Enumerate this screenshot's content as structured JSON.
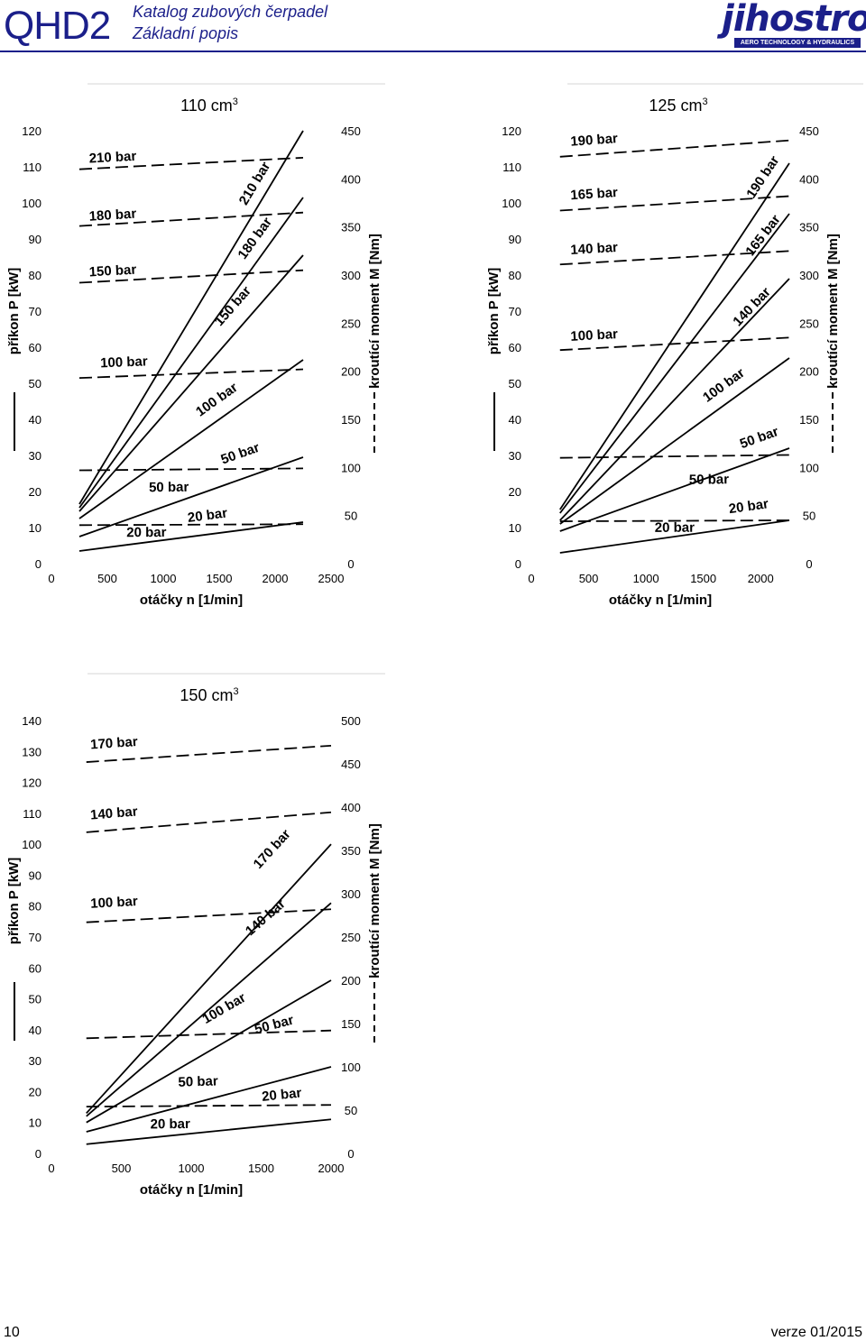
{
  "header": {
    "code": "QHD2",
    "subtitle_1": "Katalog zubových čerpadel",
    "subtitle_2": "Základní popis",
    "logo_text": "jihostroj",
    "logo_tagline": "AERO TECHNOLOGY & HYDRAULICS"
  },
  "footer": {
    "page_number": "10",
    "version": "verze 01/2015"
  },
  "colors": {
    "brand": "#1b1f8a",
    "lines": "#000000",
    "grid": "#e0e0e0"
  },
  "chart_data": [
    {
      "type": "line",
      "title_main": "110 cm",
      "title_sup": "3",
      "xlabel": "otáčky n [1/min]",
      "ylabel": "příkon P [kW]",
      "y2label": "kroutící moment M [Nm]",
      "xlim": [
        0,
        2500
      ],
      "ylim": [
        0,
        120
      ],
      "y2lim": [
        0,
        450
      ],
      "x_ticks": [
        "0",
        "500",
        "1000",
        "1500",
        "2000",
        "2500"
      ],
      "y_ticks": [
        "0",
        "10",
        "20",
        "30",
        "40",
        "50",
        "60",
        "70",
        "80",
        "90",
        "100",
        "110",
        "120"
      ],
      "y2_ticks": [
        "0",
        "50",
        "100",
        "150",
        "200",
        "250",
        "300",
        "350",
        "400",
        "450"
      ],
      "power_series": [
        {
          "name": "20 bar",
          "x": [
            250,
            2250
          ],
          "y": [
            3.5,
            11.5
          ],
          "lx": 1400,
          "ly": 12.2
        },
        {
          "name": "50 bar",
          "x": [
            250,
            2250
          ],
          "y": [
            7.5,
            29.5
          ],
          "lx": 1700,
          "ly": 29.4
        },
        {
          "name": "100 bar",
          "x": [
            250,
            2250
          ],
          "y": [
            12.5,
            56.5
          ],
          "lx": 1500,
          "ly": 44.5
        },
        {
          "name": "150 bar",
          "x": [
            250,
            2250
          ],
          "y": [
            14.5,
            85.5
          ],
          "lx": 1650,
          "ly": 70.6
        },
        {
          "name": "180 bar",
          "x": [
            250,
            2250
          ],
          "y": [
            15.5,
            101.5
          ],
          "lx": 1850,
          "ly": 89.5
        },
        {
          "name": "210 bar",
          "x": [
            250,
            2250
          ],
          "y": [
            16.5,
            120
          ],
          "lx": 1850,
          "ly": 104.8
        }
      ],
      "torque_series": [
        {
          "name": "20 bar",
          "x": [
            250,
            2250
          ],
          "y": [
            40,
            41
          ],
          "lx": 850,
          "ly": 28
        },
        {
          "name": "50 bar",
          "x": [
            250,
            2250
          ],
          "y": [
            97,
            99
          ],
          "lx": 1050,
          "ly": 75
        },
        {
          "name": "100 bar",
          "x": [
            250,
            2250
          ],
          "y": [
            193,
            202
          ],
          "lx": 650,
          "ly": 205
        },
        {
          "name": "150 bar",
          "x": [
            250,
            2250
          ],
          "y": [
            292,
            305
          ],
          "lx": 550,
          "ly": 300
        },
        {
          "name": "180 bar",
          "x": [
            250,
            2250
          ],
          "y": [
            351,
            365
          ],
          "lx": 550,
          "ly": 358
        },
        {
          "name": "210 bar",
          "x": [
            250,
            2250
          ],
          "y": [
            410,
            422
          ],
          "lx": 550,
          "ly": 418
        }
      ]
    },
    {
      "type": "line",
      "title_main": "125 cm",
      "title_sup": "3",
      "xlabel": "otáčky n [1/min]",
      "ylabel": "příkon P [kW]",
      "y2label": "kroutící moment M [Nm]",
      "xlim": [
        0,
        2250
      ],
      "ylim": [
        0,
        120
      ],
      "y2lim": [
        0,
        450
      ],
      "x_ticks": [
        "0",
        "500",
        "1000",
        "1500",
        "2000"
      ],
      "x_tick_values": [
        0,
        500,
        1000,
        1500,
        2000
      ],
      "y_ticks": [
        "0",
        "10",
        "20",
        "30",
        "40",
        "50",
        "60",
        "70",
        "80",
        "90",
        "100",
        "110",
        "120"
      ],
      "y2_ticks": [
        "0",
        "50",
        "100",
        "150",
        "200",
        "250",
        "300",
        "350",
        "400",
        "450"
      ],
      "power_series": [
        {
          "name": "20 bar",
          "x": [
            250,
            2250
          ],
          "y": [
            3,
            12
          ],
          "lx": 1900,
          "ly": 14.7
        },
        {
          "name": "50 bar",
          "x": [
            250,
            2250
          ],
          "y": [
            9,
            32
          ],
          "lx": 2000,
          "ly": 33.8
        },
        {
          "name": "100 bar",
          "x": [
            250,
            2250
          ],
          "y": [
            11,
            57
          ],
          "lx": 1700,
          "ly": 48.5
        },
        {
          "name": "140 bar",
          "x": [
            250,
            2250
          ],
          "y": [
            12,
            79
          ],
          "lx": 1950,
          "ly": 70.4
        },
        {
          "name": "165 bar",
          "x": [
            250,
            2250
          ],
          "y": [
            14,
            97
          ],
          "lx": 2050,
          "ly": 90.3
        },
        {
          "name": "190 bar",
          "x": [
            250,
            2250
          ],
          "y": [
            15,
            111
          ],
          "lx": 2050,
          "ly": 106.5
        }
      ],
      "torque_series": [
        {
          "name": "20 bar",
          "x": [
            250,
            2250
          ],
          "y": [
            44,
            45
          ],
          "lx": 1250,
          "ly": 33
        },
        {
          "name": "50 bar",
          "x": [
            250,
            2250
          ],
          "y": [
            110,
            113
          ],
          "lx": 1550,
          "ly": 83
        },
        {
          "name": "100 bar",
          "x": [
            250,
            2250
          ],
          "y": [
            222,
            235
          ],
          "lx": 550,
          "ly": 233
        },
        {
          "name": "140 bar",
          "x": [
            250,
            2250
          ],
          "y": [
            311,
            325
          ],
          "lx": 550,
          "ly": 323
        },
        {
          "name": "165 bar",
          "x": [
            250,
            2250
          ],
          "y": [
            367,
            382
          ],
          "lx": 550,
          "ly": 380
        },
        {
          "name": "190 bar",
          "x": [
            250,
            2250
          ],
          "y": [
            423,
            440
          ],
          "lx": 550,
          "ly": 436
        }
      ]
    },
    {
      "type": "line",
      "title_main": "150 cm",
      "title_sup": "3",
      "xlabel": "otáčky n [1/min]",
      "ylabel": "příkon P [kW]",
      "y2label": "kroutící moment M [Nm]",
      "xlim": [
        0,
        2000
      ],
      "ylim": [
        0,
        140
      ],
      "y2lim": [
        0,
        500
      ],
      "x_ticks": [
        "0",
        "500",
        "1000",
        "1500",
        "2000"
      ],
      "y_ticks": [
        "0",
        "10",
        "20",
        "30",
        "40",
        "50",
        "60",
        "70",
        "80",
        "90",
        "100",
        "110",
        "120",
        "130",
        "140"
      ],
      "y2_ticks": [
        "0",
        "50",
        "100",
        "150",
        "200",
        "250",
        "300",
        "350",
        "400",
        "450",
        "500"
      ],
      "power_series": [
        {
          "name": "20 bar",
          "x": [
            250,
            2000
          ],
          "y": [
            3,
            11
          ],
          "lx": 1650,
          "ly": 17.6
        },
        {
          "name": "50 bar",
          "x": [
            250,
            2000
          ],
          "y": [
            7,
            28
          ],
          "lx": 1600,
          "ly": 40.3
        },
        {
          "name": "100 bar",
          "x": [
            250,
            2000
          ],
          "y": [
            10,
            56
          ],
          "lx": 1250,
          "ly": 45.7
        },
        {
          "name": "140 bar",
          "x": [
            250,
            2000
          ],
          "y": [
            12,
            81
          ],
          "lx": 1550,
          "ly": 75.3
        },
        {
          "name": "170 bar",
          "x": [
            250,
            2000
          ],
          "y": [
            13,
            100
          ],
          "lx": 1600,
          "ly": 97.5
        }
      ],
      "torque_series": [
        {
          "name": "20 bar",
          "x": [
            250,
            2000
          ],
          "y": [
            54,
            56
          ],
          "lx": 850,
          "ly": 29
        },
        {
          "name": "50 bar",
          "x": [
            250,
            2000
          ],
          "y": [
            133,
            142
          ],
          "lx": 1050,
          "ly": 78
        },
        {
          "name": "100 bar",
          "x": [
            250,
            2000
          ],
          "y": [
            267,
            282
          ],
          "lx": 450,
          "ly": 285
        },
        {
          "name": "140 bar",
          "x": [
            250,
            2000
          ],
          "y": [
            371,
            394
          ],
          "lx": 450,
          "ly": 388
        },
        {
          "name": "170 bar",
          "x": [
            250,
            2000
          ],
          "y": [
            452,
            471
          ],
          "lx": 450,
          "ly": 469
        }
      ]
    }
  ]
}
